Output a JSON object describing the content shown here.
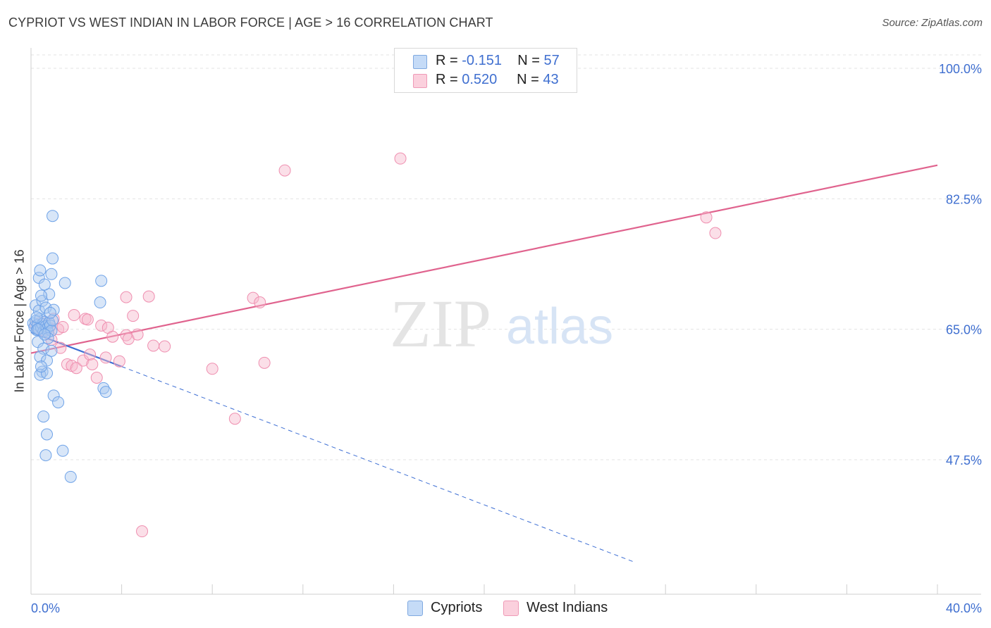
{
  "header": {
    "title": "CYPRIOT VS WEST INDIAN IN LABOR FORCE | AGE > 16 CORRELATION CHART",
    "source": "Source: ZipAtlas.com"
  },
  "watermark": {
    "zip": "ZIP",
    "atlas": "atlas"
  },
  "legend": {
    "rows": [
      {
        "r_label": "R = ",
        "r_value": "-0.151",
        "n_label": "N = ",
        "n_value": "57",
        "color": "#a8c8f0"
      },
      {
        "r_label": "R = ",
        "r_value": "0.520",
        "n_label": "N = ",
        "n_value": "43",
        "color": "#f7b8cc"
      }
    ]
  },
  "bottom_legend": [
    {
      "label": "Cypriots",
      "color": "#a8c8f0"
    },
    {
      "label": "West Indians",
      "color": "#f7b8cc"
    }
  ],
  "chart_data": {
    "type": "scatter",
    "title": "CYPRIOT VS WEST INDIAN IN LABOR FORCE | AGE > 16 CORRELATION CHART",
    "ylabel": "In Labor Force | Age > 16",
    "xlabel": "",
    "xlim": [
      0,
      40
    ],
    "ylim": [
      30,
      104
    ],
    "x_tick_labels": [
      "0.0%",
      "40.0%"
    ],
    "y_ticks": [
      47.5,
      65.0,
      82.5,
      100.0
    ],
    "y_tick_labels": [
      "47.5%",
      "65.0%",
      "82.5%",
      "100.0%"
    ],
    "grid": true,
    "legend_position": "top-center",
    "colors": {
      "cypriots": "#6fa3e8",
      "west_indians": "#ef8fb0",
      "cyp_line": "#3e6fd4",
      "wi_line": "#e0638e",
      "axis_label": "#3f6fd0"
    },
    "series": [
      {
        "name": "Cypriots",
        "stats": {
          "R": -0.151,
          "N": 57
        },
        "trend": {
          "x": [
            0.0,
            4.0
          ],
          "y": [
            64.6,
            60.0
          ],
          "dashed_to": [
            26.6,
            33.8
          ]
        },
        "points": [
          [
            0.1,
            65.8
          ],
          [
            0.15,
            65.3
          ],
          [
            0.2,
            66.1
          ],
          [
            0.25,
            64.9
          ],
          [
            0.3,
            65.6
          ],
          [
            0.35,
            65.0
          ],
          [
            0.4,
            66.4
          ],
          [
            0.45,
            65.2
          ],
          [
            0.5,
            65.7
          ],
          [
            0.55,
            64.7
          ],
          [
            0.6,
            66.0
          ],
          [
            0.65,
            65.4
          ],
          [
            0.7,
            65.1
          ],
          [
            0.75,
            64.6
          ],
          [
            0.8,
            65.9
          ],
          [
            0.85,
            65.5
          ],
          [
            0.9,
            64.8
          ],
          [
            0.95,
            66.2
          ],
          [
            0.2,
            68.2
          ],
          [
            0.35,
            67.5
          ],
          [
            0.5,
            68.8
          ],
          [
            0.65,
            67.9
          ],
          [
            0.8,
            69.7
          ],
          [
            1.0,
            67.6
          ],
          [
            0.3,
            63.3
          ],
          [
            0.55,
            62.4
          ],
          [
            0.75,
            63.8
          ],
          [
            0.9,
            62.1
          ],
          [
            0.4,
            61.3
          ],
          [
            0.7,
            60.8
          ],
          [
            0.5,
            59.3
          ],
          [
            0.4,
            58.9
          ],
          [
            0.7,
            59.1
          ],
          [
            0.45,
            60.0
          ],
          [
            0.35,
            71.9
          ],
          [
            0.6,
            71.0
          ],
          [
            0.9,
            72.4
          ],
          [
            1.5,
            71.2
          ],
          [
            0.4,
            72.9
          ],
          [
            0.95,
            74.5
          ],
          [
            0.95,
            80.2
          ],
          [
            3.1,
            71.5
          ],
          [
            3.05,
            68.6
          ],
          [
            1.0,
            56.1
          ],
          [
            1.2,
            55.2
          ],
          [
            3.2,
            57.1
          ],
          [
            3.3,
            56.6
          ],
          [
            0.55,
            53.3
          ],
          [
            0.7,
            50.9
          ],
          [
            1.4,
            48.7
          ],
          [
            0.65,
            48.1
          ],
          [
            1.75,
            45.2
          ],
          [
            0.3,
            65.0
          ],
          [
            0.6,
            64.3
          ],
          [
            0.25,
            66.6
          ],
          [
            0.85,
            67.2
          ],
          [
            0.45,
            69.5
          ]
        ]
      },
      {
        "name": "West Indians",
        "stats": {
          "R": 0.52,
          "N": 43
        },
        "trend": {
          "x": [
            0.0,
            40.0
          ],
          "y": [
            61.8,
            87.0
          ]
        },
        "points": [
          [
            0.2,
            65.5
          ],
          [
            0.4,
            65.8
          ],
          [
            0.6,
            66.0
          ],
          [
            0.8,
            65.2
          ],
          [
            1.0,
            66.4
          ],
          [
            1.2,
            65.0
          ],
          [
            1.4,
            65.3
          ],
          [
            0.5,
            64.8
          ],
          [
            0.9,
            63.6
          ],
          [
            1.3,
            62.5
          ],
          [
            1.9,
            66.9
          ],
          [
            2.4,
            66.4
          ],
          [
            2.5,
            66.3
          ],
          [
            3.1,
            65.5
          ],
          [
            3.4,
            65.2
          ],
          [
            3.6,
            64.0
          ],
          [
            4.2,
            64.2
          ],
          [
            4.3,
            63.7
          ],
          [
            4.7,
            64.3
          ],
          [
            4.2,
            69.3
          ],
          [
            4.5,
            66.8
          ],
          [
            5.2,
            69.4
          ],
          [
            5.4,
            62.8
          ],
          [
            5.9,
            62.7
          ],
          [
            1.6,
            60.3
          ],
          [
            1.8,
            60.1
          ],
          [
            2.0,
            59.8
          ],
          [
            2.3,
            60.8
          ],
          [
            2.6,
            61.6
          ],
          [
            2.7,
            60.3
          ],
          [
            2.9,
            58.5
          ],
          [
            3.3,
            61.2
          ],
          [
            3.9,
            60.7
          ],
          [
            8.0,
            59.7
          ],
          [
            9.0,
            53.0
          ],
          [
            9.8,
            69.2
          ],
          [
            10.1,
            68.6
          ],
          [
            10.3,
            60.5
          ],
          [
            11.2,
            86.3
          ],
          [
            16.3,
            87.9
          ],
          [
            29.8,
            80.0
          ],
          [
            30.2,
            77.9
          ],
          [
            4.9,
            37.9
          ]
        ]
      }
    ]
  }
}
